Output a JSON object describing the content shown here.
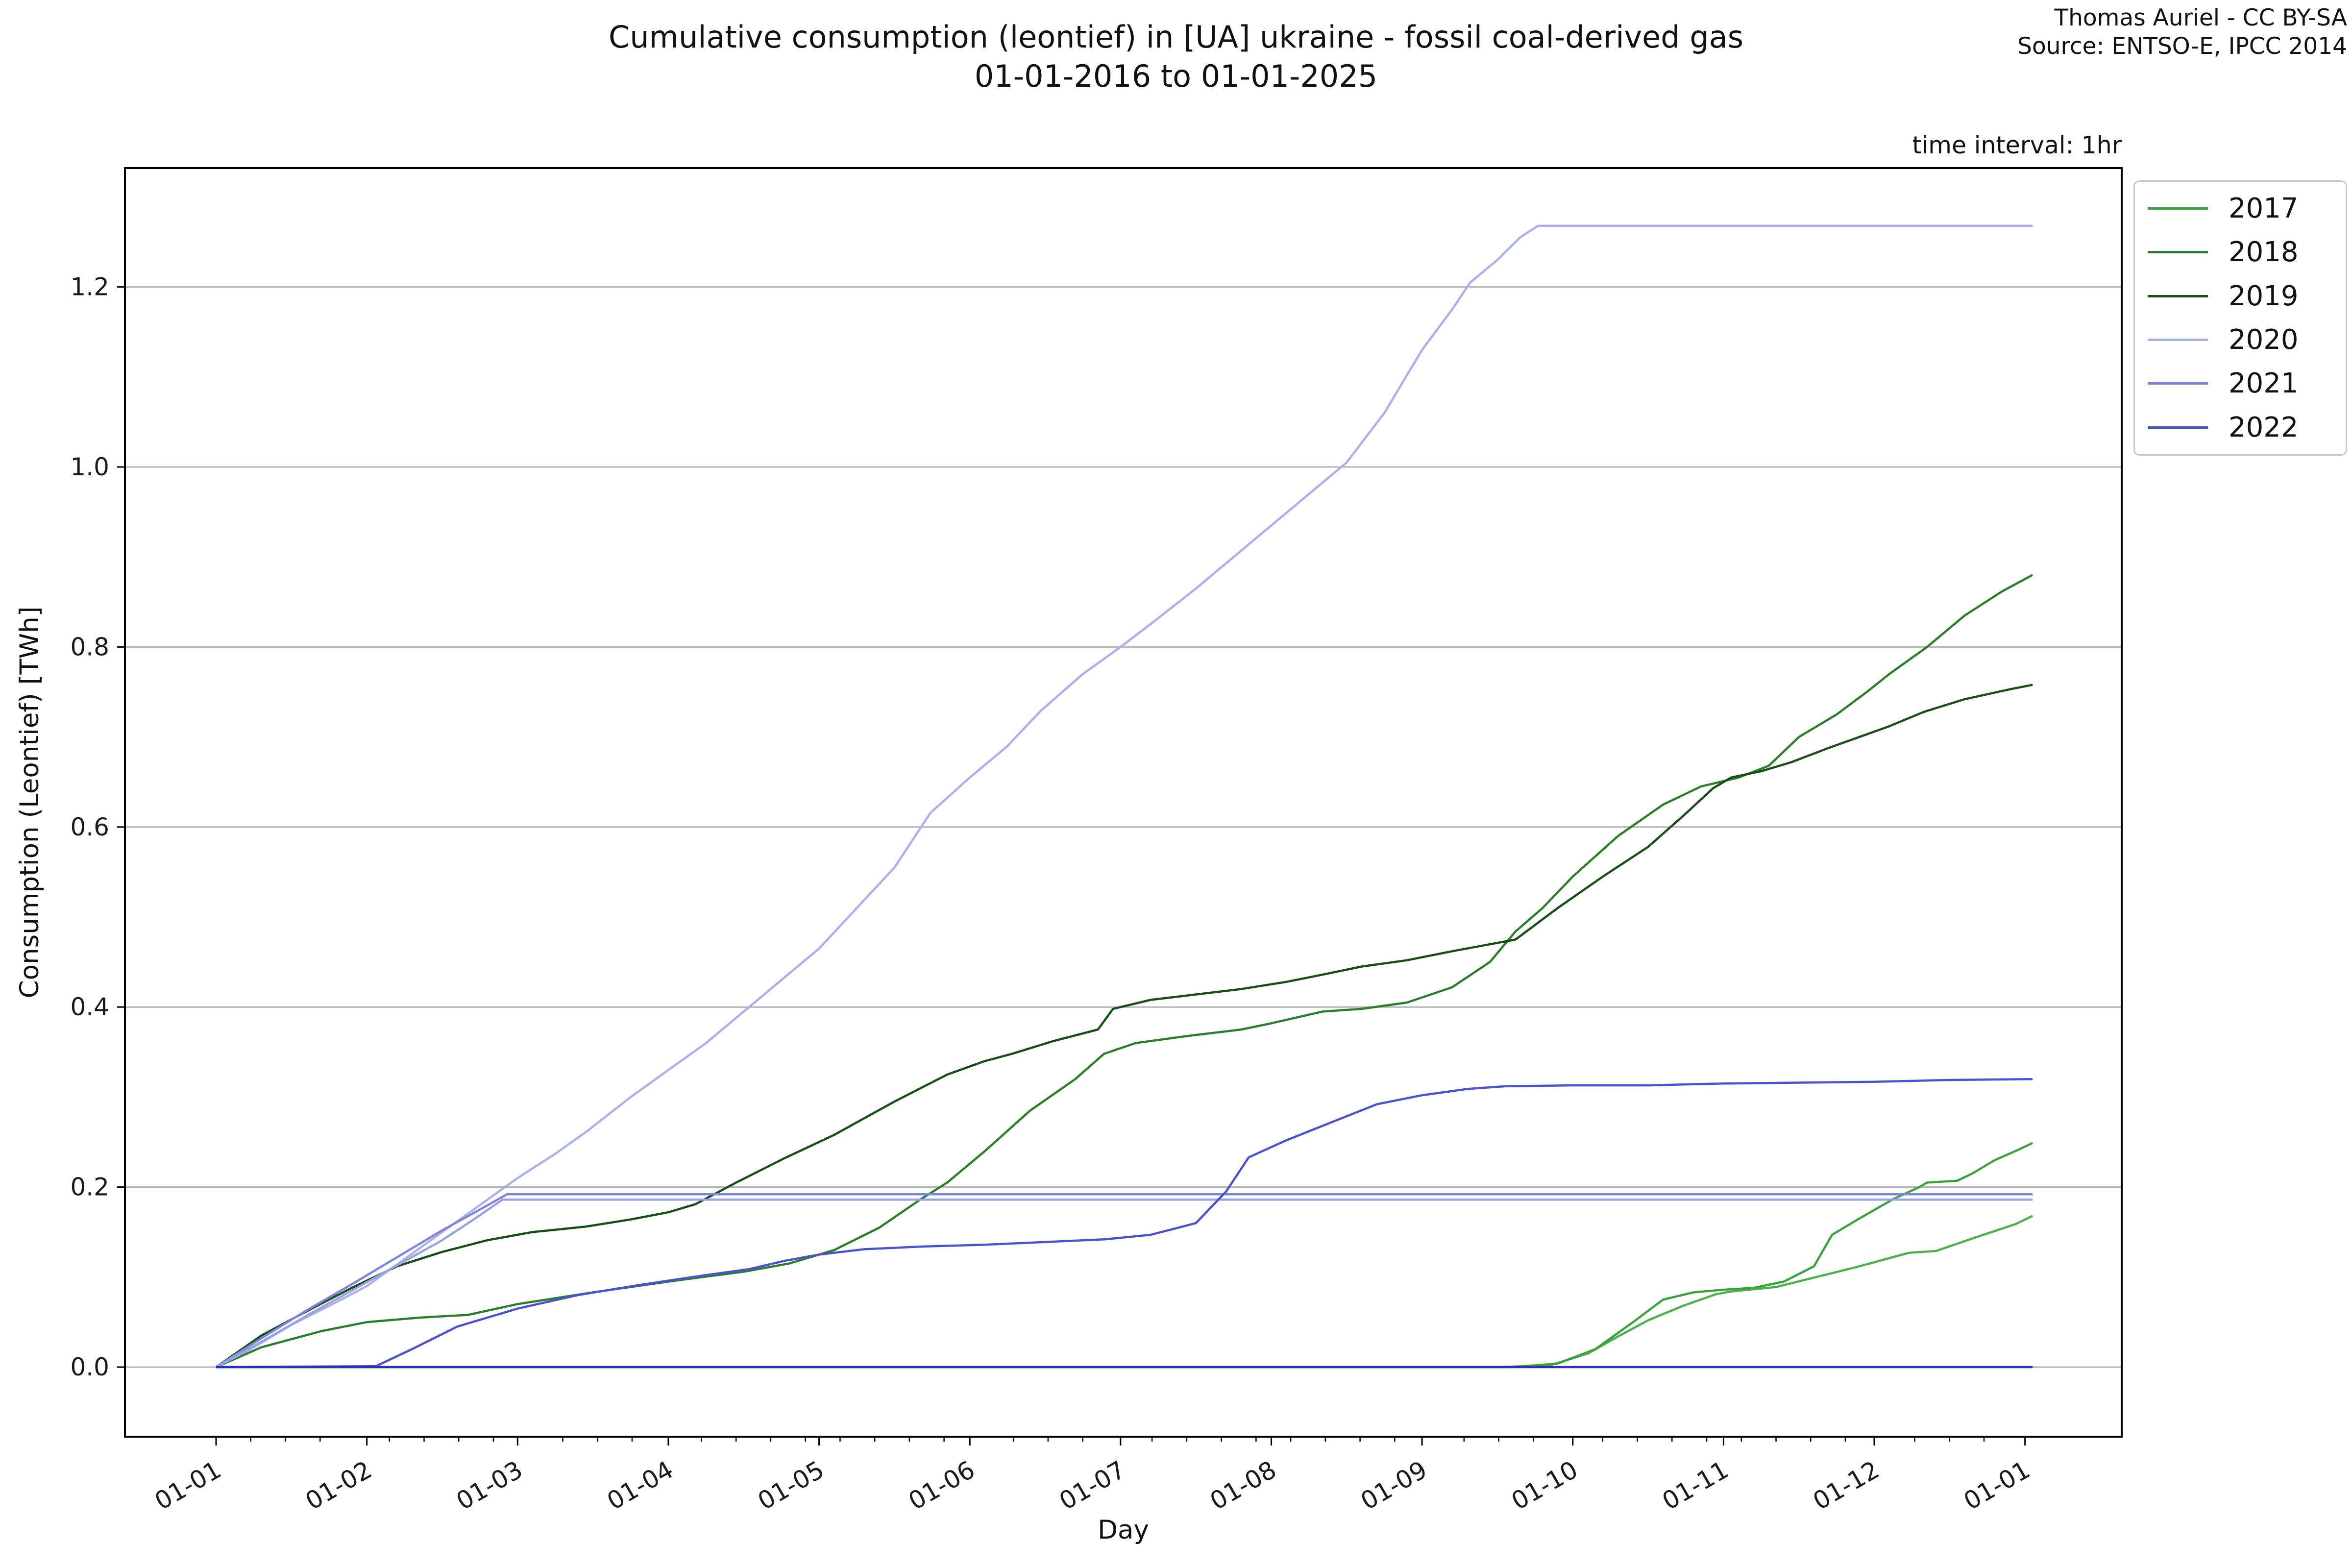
{
  "header": {
    "title_line1": "Cumulative consumption (leontief) in [UA] ukraine - fossil coal-derived gas",
    "title_line2": "01-01-2016 to 01-01-2025",
    "attribution_line1": "Thomas Auriel - CC BY-SA",
    "attribution_line2": "Source: ENTSO-E, IPCC 2014",
    "time_interval_note": "time interval: 1hr"
  },
  "chart_data": {
    "type": "line",
    "title": "Cumulative consumption (leontief) in [UA] ukraine - fossil coal-derived gas 01-01-2016 to 01-01-2025",
    "xlabel": "Day",
    "ylabel": "Consumption (Leontief) [TWh]",
    "x_tick_labels": [
      "01-01",
      "01-02",
      "01-03",
      "01-04",
      "01-05",
      "01-06",
      "01-07",
      "01-08",
      "01-09",
      "01-10",
      "01-11",
      "01-12",
      "01-01"
    ],
    "y_ticks": [
      0.0,
      0.2,
      0.4,
      0.6,
      0.8,
      1.0,
      1.2
    ],
    "ylim": [
      -0.07,
      1.34
    ],
    "grid": "horizontal",
    "legend_position": "upper-right-outside",
    "x_unit": "months-from-jan-1",
    "series": [
      {
        "name": "",
        "in_legend": false,
        "color": "#4cb04c",
        "points": [
          [
            0,
            0
          ],
          [
            8.5,
            0
          ],
          [
            8.85,
            0.002
          ],
          [
            9.1,
            0.015
          ],
          [
            9.3,
            0.034
          ],
          [
            9.5,
            0.052
          ],
          [
            9.73,
            0.068
          ],
          [
            9.95,
            0.081
          ],
          [
            10.05,
            0.084
          ],
          [
            10.35,
            0.089
          ],
          [
            10.59,
            0.099
          ],
          [
            10.88,
            0.111
          ],
          [
            11.23,
            0.127
          ],
          [
            11.41,
            0.129
          ],
          [
            11.67,
            0.144
          ],
          [
            11.94,
            0.159
          ],
          [
            12.05,
            0.168
          ]
        ]
      },
      {
        "name": "2017",
        "in_legend": true,
        "color": "#3aa43a",
        "points": [
          [
            0,
            0
          ],
          [
            8.6,
            0
          ],
          [
            8.9,
            0.004
          ],
          [
            9.15,
            0.02
          ],
          [
            9.4,
            0.05
          ],
          [
            9.6,
            0.075
          ],
          [
            9.8,
            0.083
          ],
          [
            10.0,
            0.086
          ],
          [
            10.2,
            0.088
          ],
          [
            10.4,
            0.095
          ],
          [
            10.6,
            0.112
          ],
          [
            10.72,
            0.147
          ],
          [
            10.9,
            0.165
          ],
          [
            11.13,
            0.187
          ],
          [
            11.3,
            0.2
          ],
          [
            11.35,
            0.205
          ],
          [
            11.55,
            0.207
          ],
          [
            11.65,
            0.215
          ],
          [
            11.8,
            0.23
          ],
          [
            11.95,
            0.241
          ],
          [
            12.05,
            0.249
          ]
        ]
      },
      {
        "name": "2018",
        "in_legend": true,
        "color": "#2b7f2b",
        "points": [
          [
            0,
            0
          ],
          [
            0.3,
            0.022
          ],
          [
            0.7,
            0.04
          ],
          [
            1.0,
            0.05
          ],
          [
            1.35,
            0.055
          ],
          [
            1.67,
            0.058
          ],
          [
            2.0,
            0.07
          ],
          [
            2.5,
            0.083
          ],
          [
            3.0,
            0.095
          ],
          [
            3.5,
            0.106
          ],
          [
            3.8,
            0.115
          ],
          [
            4.1,
            0.13
          ],
          [
            4.4,
            0.155
          ],
          [
            4.67,
            0.186
          ],
          [
            4.85,
            0.205
          ],
          [
            5.1,
            0.24
          ],
          [
            5.4,
            0.285
          ],
          [
            5.7,
            0.32
          ],
          [
            5.89,
            0.348
          ],
          [
            6.1,
            0.36
          ],
          [
            6.45,
            0.368
          ],
          [
            6.8,
            0.375
          ],
          [
            7.0,
            0.382
          ],
          [
            7.34,
            0.395
          ],
          [
            7.6,
            0.398
          ],
          [
            7.9,
            0.405
          ],
          [
            8.2,
            0.422
          ],
          [
            8.45,
            0.45
          ],
          [
            8.62,
            0.484
          ],
          [
            8.8,
            0.51
          ],
          [
            9.0,
            0.545
          ],
          [
            9.3,
            0.59
          ],
          [
            9.6,
            0.625
          ],
          [
            9.85,
            0.645
          ],
          [
            10.1,
            0.655
          ],
          [
            10.3,
            0.668
          ],
          [
            10.5,
            0.7
          ],
          [
            10.75,
            0.725
          ],
          [
            10.95,
            0.75
          ],
          [
            11.1,
            0.77
          ],
          [
            11.35,
            0.8
          ],
          [
            11.6,
            0.835
          ],
          [
            11.85,
            0.862
          ],
          [
            12.05,
            0.88
          ]
        ]
      },
      {
        "name": "2019",
        "in_legend": true,
        "color": "#174f17",
        "points": [
          [
            0,
            0
          ],
          [
            0.3,
            0.035
          ],
          [
            0.6,
            0.062
          ],
          [
            0.9,
            0.088
          ],
          [
            1.2,
            0.112
          ],
          [
            1.5,
            0.128
          ],
          [
            1.8,
            0.141
          ],
          [
            2.1,
            0.15
          ],
          [
            2.45,
            0.156
          ],
          [
            2.75,
            0.164
          ],
          [
            3.0,
            0.172
          ],
          [
            3.18,
            0.181
          ],
          [
            3.45,
            0.205
          ],
          [
            3.77,
            0.232
          ],
          [
            4.1,
            0.258
          ],
          [
            4.5,
            0.295
          ],
          [
            4.85,
            0.325
          ],
          [
            5.1,
            0.34
          ],
          [
            5.28,
            0.348
          ],
          [
            5.55,
            0.362
          ],
          [
            5.85,
            0.375
          ],
          [
            5.95,
            0.398
          ],
          [
            6.2,
            0.408
          ],
          [
            6.5,
            0.414
          ],
          [
            6.8,
            0.42
          ],
          [
            7.1,
            0.428
          ],
          [
            7.34,
            0.436
          ],
          [
            7.6,
            0.445
          ],
          [
            7.9,
            0.452
          ],
          [
            8.2,
            0.462
          ],
          [
            8.62,
            0.475
          ],
          [
            8.9,
            0.51
          ],
          [
            9.2,
            0.545
          ],
          [
            9.5,
            0.578
          ],
          [
            9.75,
            0.615
          ],
          [
            9.93,
            0.643
          ],
          [
            10.05,
            0.655
          ],
          [
            10.25,
            0.662
          ],
          [
            10.45,
            0.672
          ],
          [
            10.7,
            0.688
          ],
          [
            10.9,
            0.7
          ],
          [
            11.1,
            0.712
          ],
          [
            11.33,
            0.728
          ],
          [
            11.6,
            0.742
          ],
          [
            11.9,
            0.753
          ],
          [
            12.05,
            0.758
          ]
        ]
      },
      {
        "name": "2020",
        "in_legend": true,
        "color": "#a9b0ec",
        "points": [
          [
            0,
            0
          ],
          [
            0.25,
            0.022
          ],
          [
            0.5,
            0.047
          ],
          [
            0.75,
            0.068
          ],
          [
            1.0,
            0.09
          ],
          [
            1.25,
            0.12
          ],
          [
            1.5,
            0.15
          ],
          [
            1.75,
            0.18
          ],
          [
            2.0,
            0.21
          ],
          [
            2.25,
            0.237
          ],
          [
            2.46,
            0.262
          ],
          [
            2.75,
            0.3
          ],
          [
            3.0,
            0.33
          ],
          [
            3.25,
            0.36
          ],
          [
            3.5,
            0.395
          ],
          [
            3.75,
            0.43
          ],
          [
            4.0,
            0.465
          ],
          [
            4.25,
            0.51
          ],
          [
            4.5,
            0.555
          ],
          [
            4.74,
            0.616
          ],
          [
            5.0,
            0.655
          ],
          [
            5.25,
            0.69
          ],
          [
            5.47,
            0.729
          ],
          [
            5.75,
            0.77
          ],
          [
            6.0,
            0.8
          ],
          [
            6.25,
            0.832
          ],
          [
            6.5,
            0.865
          ],
          [
            6.75,
            0.9
          ],
          [
            7.0,
            0.935
          ],
          [
            7.25,
            0.97
          ],
          [
            7.5,
            1.005
          ],
          [
            7.75,
            1.06
          ],
          [
            8.0,
            1.13
          ],
          [
            8.2,
            1.175
          ],
          [
            8.32,
            1.205
          ],
          [
            8.5,
            1.23
          ],
          [
            8.65,
            1.255
          ],
          [
            8.77,
            1.268
          ],
          [
            12.05,
            1.268
          ]
        ]
      },
      {
        "name": "2021",
        "in_legend": true,
        "color": "#7d84dd",
        "points": [
          [
            0,
            0
          ],
          [
            0.3,
            0.032
          ],
          [
            0.6,
            0.063
          ],
          [
            0.9,
            0.092
          ],
          [
            1.2,
            0.122
          ],
          [
            1.5,
            0.152
          ],
          [
            1.75,
            0.175
          ],
          [
            1.93,
            0.192
          ],
          [
            12.05,
            0.192
          ]
        ]
      },
      {
        "name": "",
        "in_legend": false,
        "color": "#98a0e8",
        "points": [
          [
            0,
            0
          ],
          [
            0.3,
            0.028
          ],
          [
            0.6,
            0.057
          ],
          [
            0.9,
            0.085
          ],
          [
            1.2,
            0.113
          ],
          [
            1.49,
            0.14
          ],
          [
            1.7,
            0.163
          ],
          [
            1.9,
            0.186
          ],
          [
            12.05,
            0.186
          ]
        ]
      },
      {
        "name": "2022",
        "in_legend": true,
        "color": "#4a52cf",
        "points": [
          [
            0,
            0
          ],
          [
            1.06,
            0.001
          ],
          [
            1.3,
            0.02
          ],
          [
            1.6,
            0.045
          ],
          [
            2.0,
            0.065
          ],
          [
            2.4,
            0.08
          ],
          [
            2.8,
            0.091
          ],
          [
            3.2,
            0.101
          ],
          [
            3.54,
            0.109
          ],
          [
            3.77,
            0.118
          ],
          [
            4.0,
            0.125
          ],
          [
            4.3,
            0.131
          ],
          [
            4.7,
            0.134
          ],
          [
            5.1,
            0.136
          ],
          [
            5.5,
            0.139
          ],
          [
            5.9,
            0.142
          ],
          [
            6.2,
            0.147
          ],
          [
            6.5,
            0.16
          ],
          [
            6.7,
            0.195
          ],
          [
            6.85,
            0.233
          ],
          [
            7.1,
            0.252
          ],
          [
            7.4,
            0.272
          ],
          [
            7.7,
            0.292
          ],
          [
            8.0,
            0.302
          ],
          [
            8.3,
            0.309
          ],
          [
            8.55,
            0.312
          ],
          [
            9.0,
            0.313
          ],
          [
            9.5,
            0.313
          ],
          [
            10.0,
            0.315
          ],
          [
            10.5,
            0.316
          ],
          [
            11.0,
            0.317
          ],
          [
            11.5,
            0.319
          ],
          [
            12.05,
            0.32
          ]
        ]
      },
      {
        "name": "",
        "in_legend": false,
        "color": "#2e31b5",
        "points": [
          [
            0,
            0
          ],
          [
            12.05,
            0
          ]
        ]
      }
    ]
  }
}
